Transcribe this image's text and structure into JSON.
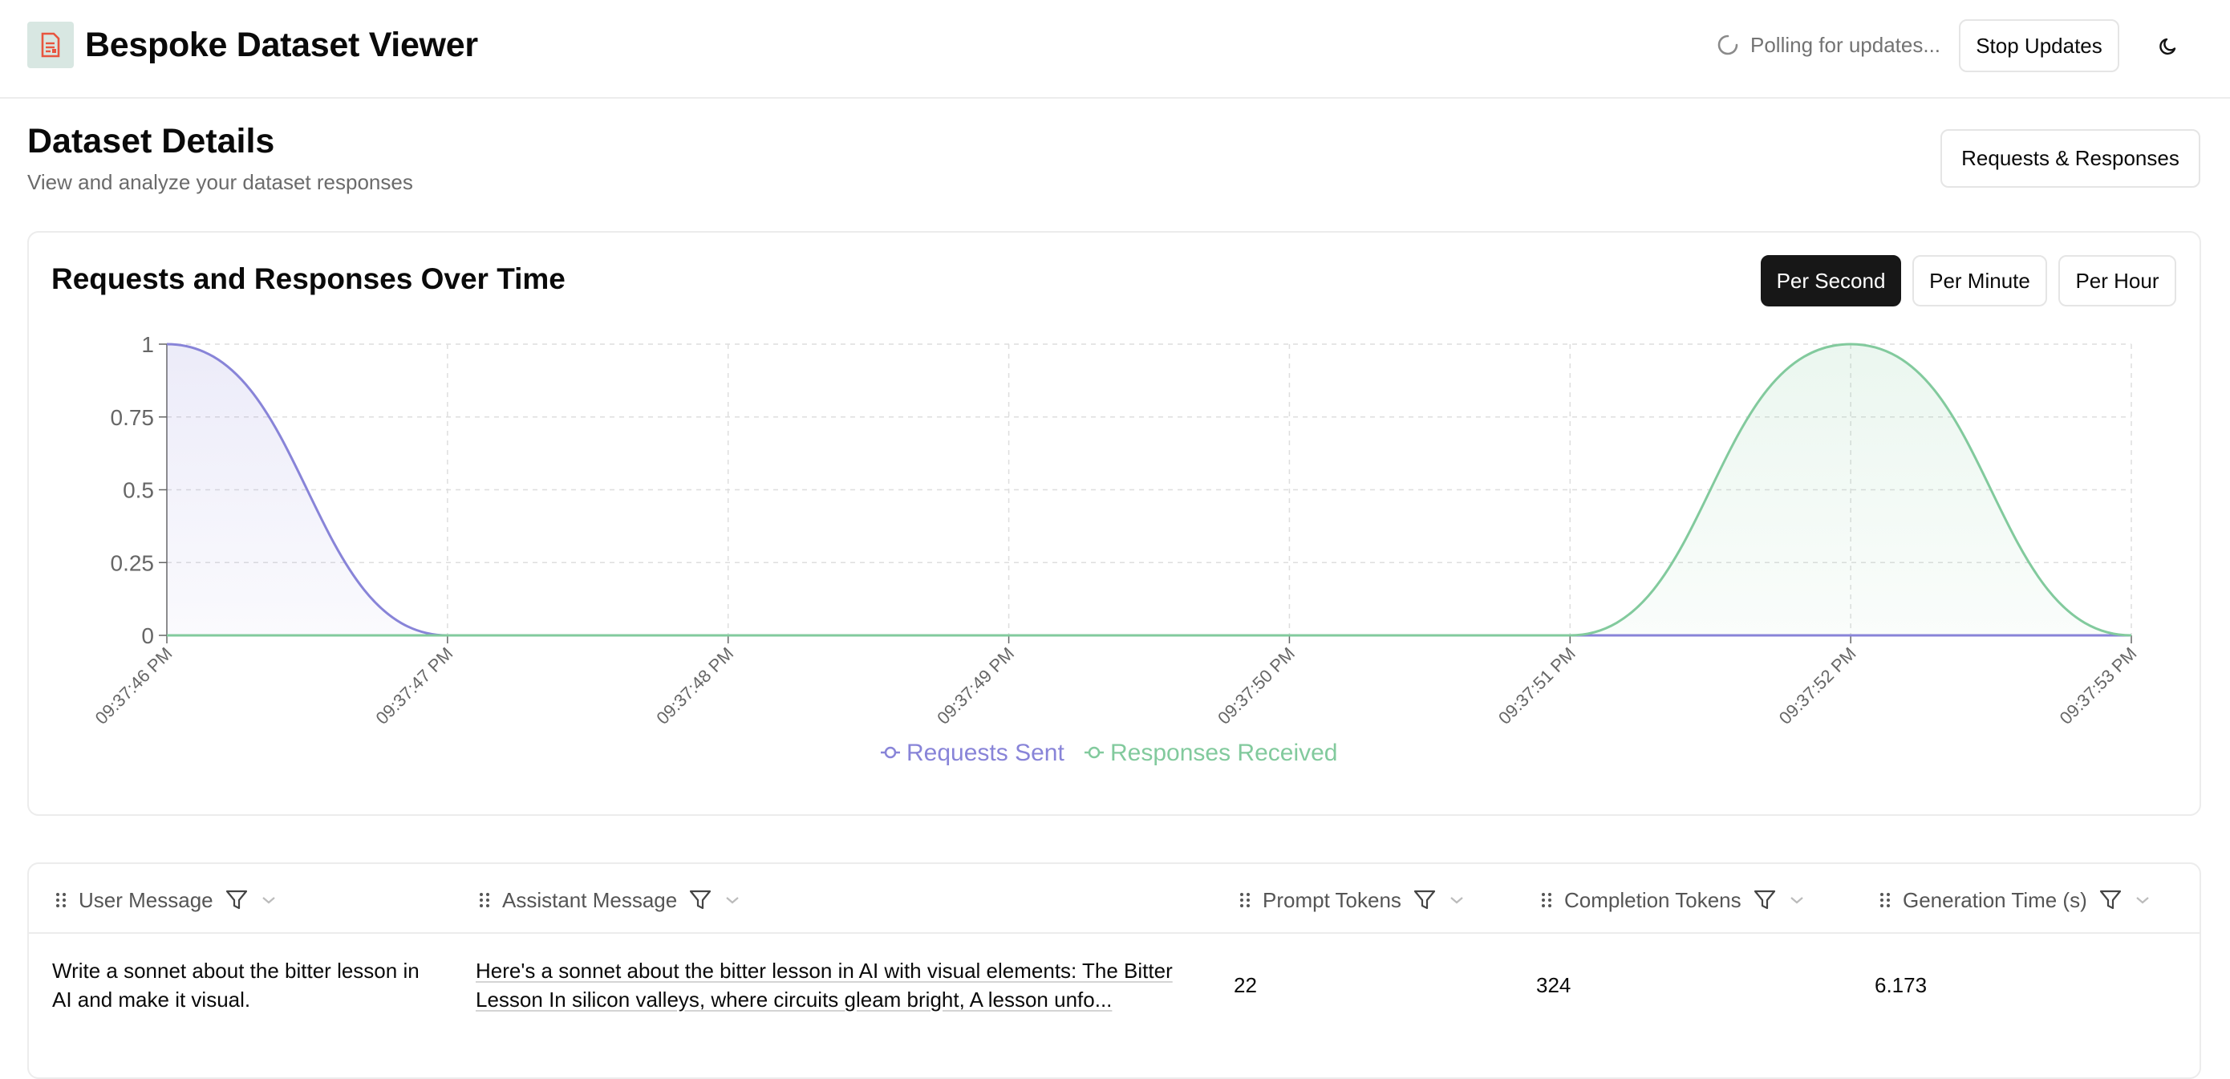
{
  "header": {
    "title": "Bespoke Dataset Viewer",
    "polling_text": "Polling for updates...",
    "stop_button": "Stop Updates"
  },
  "page": {
    "title": "Dataset Details",
    "subtitle": "View and analyze your dataset responses",
    "view_button": "Requests & Responses"
  },
  "chart_section": {
    "title": "Requests and Responses Over Time",
    "toggles": [
      {
        "label": "Per Second",
        "active": true
      },
      {
        "label": "Per Minute",
        "active": false
      },
      {
        "label": "Per Hour",
        "active": false
      }
    ]
  },
  "chart_data": {
    "type": "area",
    "x": [
      "09:37:46 PM",
      "09:37:47 PM",
      "09:37:48 PM",
      "09:37:49 PM",
      "09:37:50 PM",
      "09:37:51 PM",
      "09:37:52 PM",
      "09:37:53 PM"
    ],
    "y_ticks": [
      "0",
      "0.25",
      "0.5",
      "0.75",
      "1"
    ],
    "ylim": [
      0,
      1
    ],
    "grid": true,
    "legend_position": "bottom",
    "series": [
      {
        "name": "Requests Sent",
        "values": [
          1,
          0,
          0,
          0,
          0,
          0,
          0,
          0
        ],
        "color": "#8884d8"
      },
      {
        "name": "Responses Received",
        "values": [
          0,
          0,
          0,
          0,
          0,
          0,
          1,
          0
        ],
        "color": "#82ca9d"
      }
    ]
  },
  "table": {
    "columns": [
      "User Message",
      "Assistant Message",
      "Prompt Tokens",
      "Completion Tokens",
      "Generation Time (s)"
    ],
    "rows": [
      {
        "user_message_line1": "Write a sonnet about the bitter lesson in",
        "user_message_line2": "AI and make it visual.",
        "assistant_message_line1": "Here's a sonnet about the bitter lesson in AI with visual elements: The Bitter",
        "assistant_message_line2": "Lesson In silicon valleys, where circuits gleam bright, A lesson unfo...",
        "prompt_tokens": "22",
        "completion_tokens": "324",
        "generation_time": "6.173"
      }
    ]
  },
  "colors": {
    "logo_bg": "#d8e7e2",
    "logo_icon": "#e8553f",
    "primary_button": "#171717"
  }
}
